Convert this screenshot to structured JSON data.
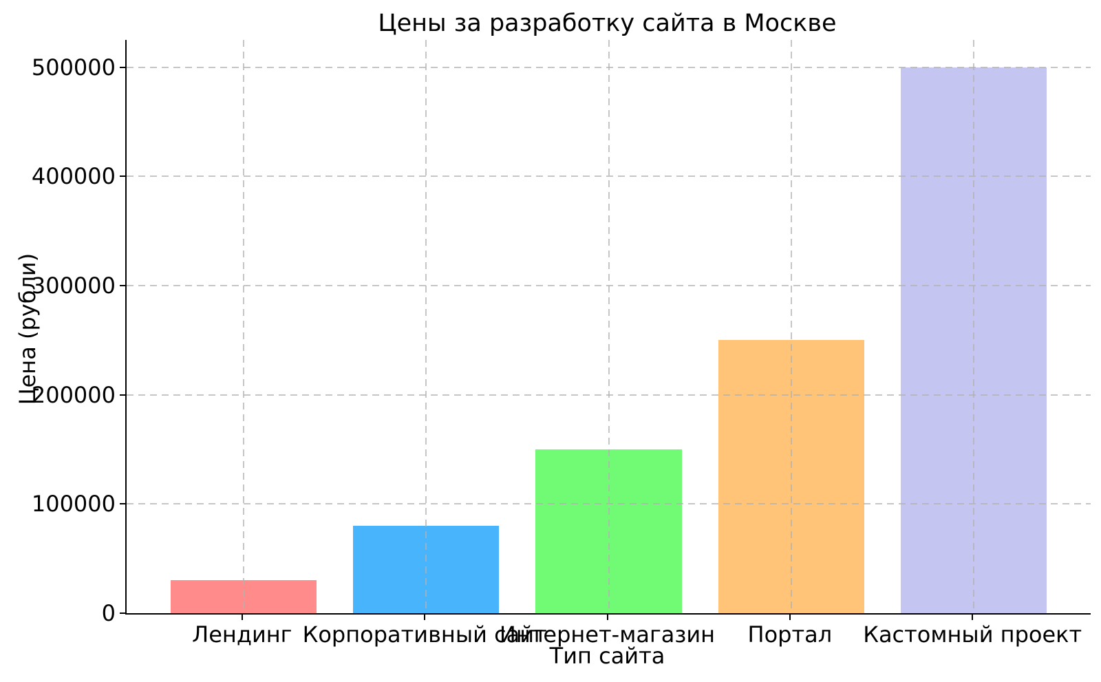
{
  "chart_data": {
    "type": "bar",
    "title": "Цены за разработку сайта в Москве",
    "xlabel": "Тип сайта",
    "ylabel": "Цена (рубли)",
    "categories": [
      "Лендинг",
      "Корпоративный сайт",
      "Интернет-магазин",
      "Портал",
      "Кастомный проект"
    ],
    "values": [
      30000,
      80000,
      150000,
      250000,
      500000
    ],
    "bar_colors": [
      "#ff8c8b",
      "#47b4fb",
      "#71fb75",
      "#ffc478",
      "#c5c5f1"
    ],
    "ylim": [
      0,
      525000
    ],
    "yticks": [
      0,
      100000,
      200000,
      300000,
      400000,
      500000
    ],
    "ytick_labels": [
      "0",
      "100000",
      "200000",
      "300000",
      "400000",
      "500000"
    ],
    "grid": {
      "visible": true,
      "line_style": "dashed",
      "color": "#b2b2b2",
      "drawn_above_bars": true
    },
    "legend": {
      "visible": false
    },
    "axis_color": "#000000",
    "text_color": "#000000",
    "background_color": "#ffffff"
  }
}
